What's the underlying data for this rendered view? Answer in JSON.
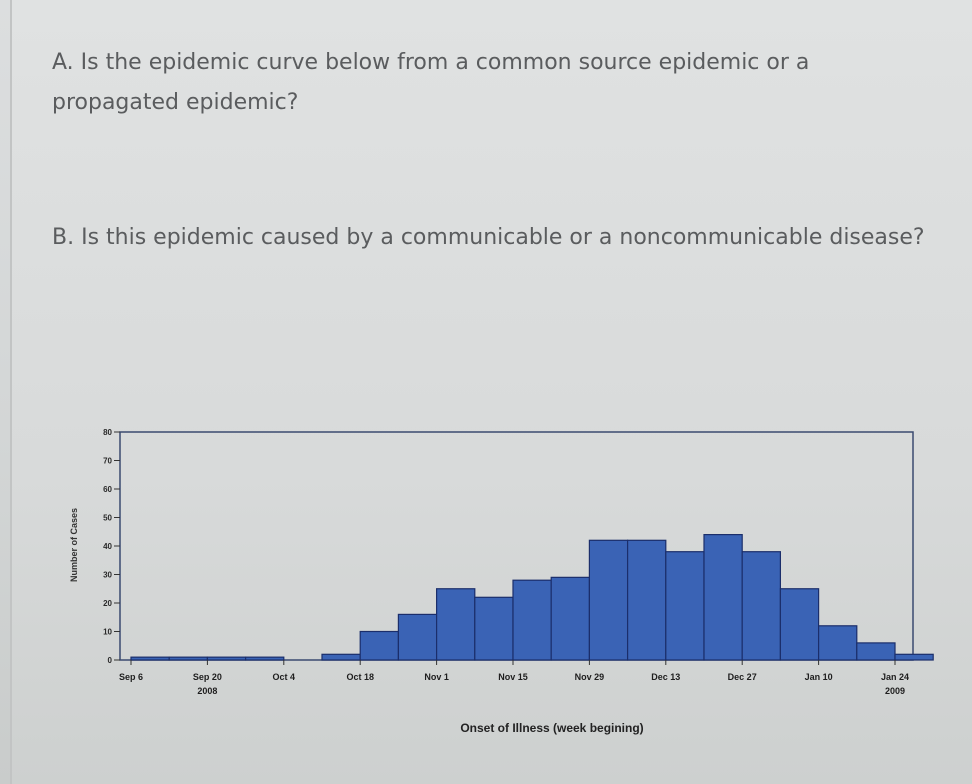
{
  "questions": {
    "a": "A. Is the epidemic curve below from a common source epidemic or a propagated epidemic?",
    "b": "B. Is this epidemic caused by a communicable or a noncommunicable disease?"
  },
  "chart_data": {
    "type": "bar",
    "title": "",
    "xlabel": "Onset of Illness (week begining)",
    "ylabel": "Number of Cases",
    "ylim": [
      0,
      80
    ],
    "yticks": [
      0,
      10,
      20,
      30,
      40,
      50,
      60,
      70,
      80
    ],
    "x_tick_labels": [
      "Sep 6",
      "Sep 20",
      "Oct 4",
      "Oct 18",
      "Nov 1",
      "Nov 15",
      "Nov 29",
      "Dec 13",
      "Dec 27",
      "Jan 10",
      "Jan 24"
    ],
    "year_labels": [
      {
        "text": "2008",
        "under": "Sep 20"
      },
      {
        "text": "2009",
        "under": "Jan 24"
      }
    ],
    "bar_start": "Sep 6",
    "bin_weeks": 1,
    "values": [
      1,
      1,
      1,
      1,
      0,
      2,
      10,
      16,
      25,
      22,
      28,
      29,
      42,
      42,
      38,
      44,
      38,
      25,
      12,
      6,
      2
    ],
    "bar_color": "#3a63b5",
    "grid": false
  }
}
